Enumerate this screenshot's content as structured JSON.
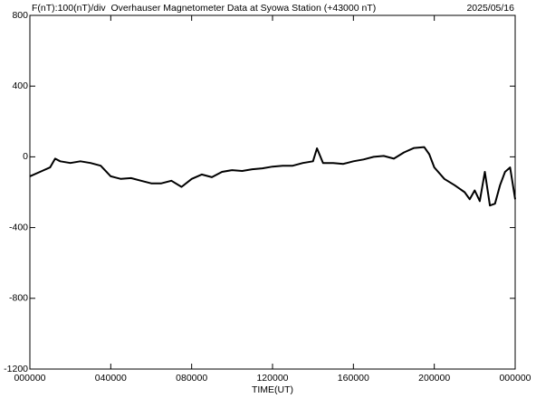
{
  "chart_data": {
    "type": "line",
    "title": "F(nT):100(nT)/div  Overhauser Magnetometer Data at Syowa Station (+43000 nT)",
    "date": "2025/05/16",
    "x_label": "TIME(UT)",
    "x": [
      0,
      0.5,
      1,
      1.25,
      1.5,
      2,
      2.5,
      3,
      3.5,
      4,
      4.5,
      5,
      5.5,
      6,
      6.5,
      7,
      7.5,
      8,
      8.5,
      9,
      9.5,
      10,
      10.5,
      11,
      11.5,
      12,
      12.5,
      13,
      13.5,
      14,
      14.2,
      14.5,
      15,
      15.5,
      16,
      16.5,
      17,
      17.5,
      18,
      18.5,
      19,
      19.5,
      19.75,
      20,
      20.5,
      21,
      21.5,
      21.75,
      22,
      22.25,
      22.5,
      22.75,
      23,
      23.25,
      23.5,
      23.75,
      24
    ],
    "series": [
      {
        "color": "#000000",
        "values": [
          -110,
          -85,
          -60,
          -10,
          -25,
          -35,
          -25,
          -35,
          -50,
          -110,
          -125,
          -120,
          -135,
          -150,
          -150,
          -135,
          -170,
          -125,
          -100,
          -115,
          -85,
          -75,
          -80,
          -70,
          -65,
          -55,
          -50,
          -50,
          -35,
          -25,
          48,
          -35,
          -35,
          -40,
          -25,
          -15,
          0,
          5,
          -10,
          25,
          50,
          55,
          15,
          -60,
          -125,
          -160,
          -200,
          -240,
          -190,
          -250,
          -85,
          -275,
          -265,
          -160,
          -85,
          -60,
          -240
        ]
      }
    ],
    "xlim": [
      0,
      24
    ],
    "xticks": [
      {
        "value": 0,
        "label": "000000"
      },
      {
        "value": 4,
        "label": "040000"
      },
      {
        "value": 8,
        "label": "080000"
      },
      {
        "value": 12,
        "label": "120000"
      },
      {
        "value": 16,
        "label": "160000"
      },
      {
        "value": 20,
        "label": "200000"
      },
      {
        "value": 24,
        "label": "000000"
      }
    ],
    "ylim": [
      -1200,
      800
    ],
    "yticks": [
      -1200,
      -800,
      -400,
      0,
      400,
      800
    ],
    "grid": false
  }
}
